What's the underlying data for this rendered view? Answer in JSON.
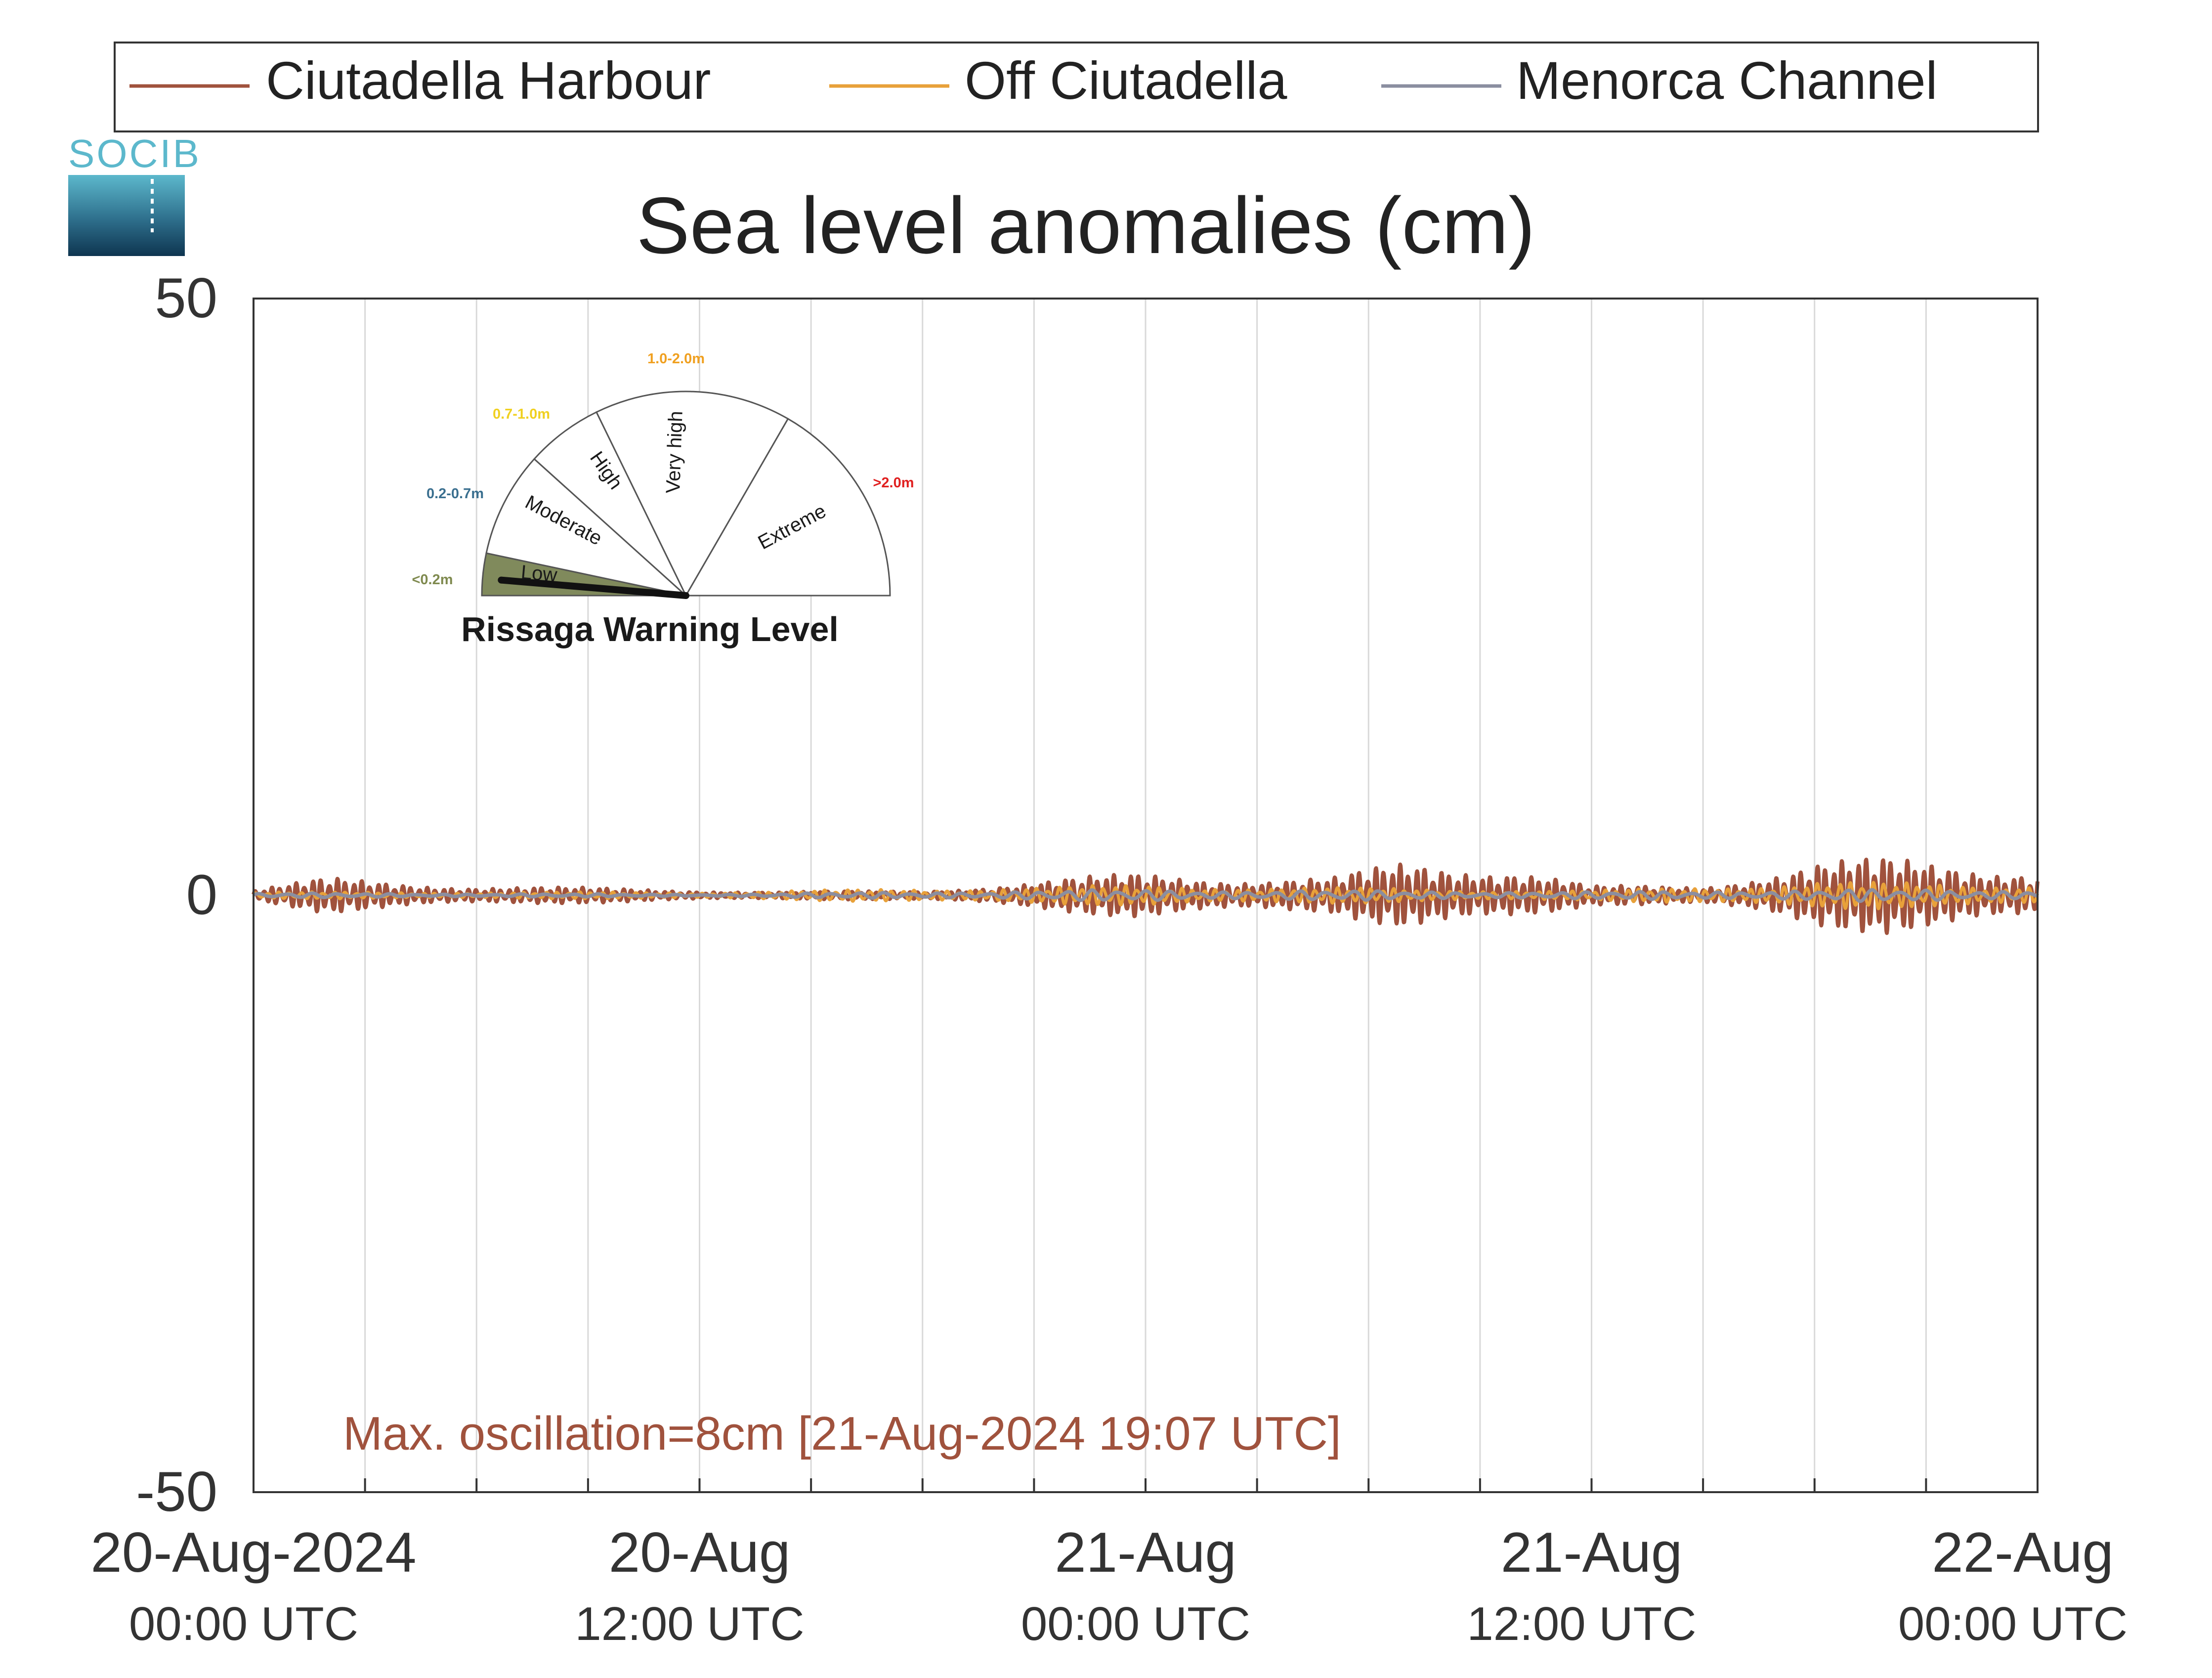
{
  "chart_data": {
    "type": "line",
    "title": "Sea level anomalies (cm)",
    "xlabel": "",
    "ylabel": "",
    "ylim": [
      -50,
      50
    ],
    "yticks": [
      -50,
      0,
      50
    ],
    "xlim": [
      "2024-08-20 00:00",
      "2024-08-22 00:00"
    ],
    "grid": "vertical lines every 3 hours",
    "legend_position": "top",
    "xtick_labels": [
      {
        "date": "20-Aug-2024",
        "time": "00:00 UTC"
      },
      {
        "date": "20-Aug",
        "time": "12:00 UTC"
      },
      {
        "date": "21-Aug",
        "time": "00:00 UTC"
      },
      {
        "date": "21-Aug",
        "time": "12:00 UTC"
      },
      {
        "date": "22-Aug",
        "time": "00:00 UTC"
      }
    ],
    "series": [
      {
        "name": "Ciutadella Harbour",
        "color": "#a0523d",
        "amplitude_profile_cm": [
          [
            "2024-08-20 00:00",
            0.5
          ],
          [
            "2024-08-20 02:00",
            1.5
          ],
          [
            "2024-08-20 06:00",
            0.8
          ],
          [
            "2024-08-20 10:00",
            0.6
          ],
          [
            "2024-08-20 14:00",
            0.3
          ],
          [
            "2024-08-20 18:00",
            0.4
          ],
          [
            "2024-08-21 00:00",
            2.0
          ],
          [
            "2024-08-21 03:00",
            1.5
          ],
          [
            "2024-08-21 05:00",
            1.5
          ],
          [
            "2024-08-21 07:00",
            3.0
          ],
          [
            "2024-08-21 10:00",
            2.5
          ],
          [
            "2024-08-21 12:00",
            0.8
          ],
          [
            "2024-08-21 15:00",
            0.8
          ],
          [
            "2024-08-21 18:00",
            3.0
          ],
          [
            "2024-08-21 20:00",
            3.2
          ],
          [
            "2024-08-22 00:00",
            2.4
          ]
        ]
      },
      {
        "name": "Off Ciutadella",
        "color": "#e8a13a",
        "amplitude_profile_cm": [
          [
            "2024-08-20 00:00",
            0.3
          ],
          [
            "2024-08-20 12:00",
            0.3
          ],
          [
            "2024-08-21 00:00",
            0.9
          ],
          [
            "2024-08-21 12:00",
            0.4
          ],
          [
            "2024-08-21 18:00",
            1.2
          ],
          [
            "2024-08-22 00:00",
            1.0
          ]
        ]
      },
      {
        "name": "Menorca Channel",
        "color": "#8b8ea0",
        "amplitude_profile_cm": [
          [
            "2024-08-20 00:00",
            0.2
          ],
          [
            "2024-08-20 12:00",
            0.1
          ],
          [
            "2024-08-21 00:00",
            0.5
          ],
          [
            "2024-08-21 12:00",
            0.3
          ],
          [
            "2024-08-21 18:00",
            0.5
          ],
          [
            "2024-08-22 00:00",
            0.5
          ]
        ]
      }
    ],
    "annotation": "Max. oscillation=8cm [21-Aug-2024 19:07 UTC]",
    "annotation_color": "#a0523d"
  },
  "logo": {
    "text": "SOCIB"
  },
  "gauge": {
    "title": "Rissaga Warning Level",
    "current_level": "Low",
    "needle_value_m": 0.08,
    "sectors": [
      {
        "label": "Low",
        "range": "<0.2m",
        "range_color": "#7f8a4f",
        "fill": "#808a5c",
        "active": true
      },
      {
        "label": "Moderate",
        "range": "0.2-0.7m",
        "range_color": "#3a6f8f",
        "fill": "#ffffff",
        "active": false
      },
      {
        "label": "High",
        "range": "0.7-1.0m",
        "range_color": "#f0d020",
        "fill": "#ffffff",
        "active": false
      },
      {
        "label": "Very high",
        "range": "1.0-2.0m",
        "range_color": "#f0a020",
        "fill": "#ffffff",
        "active": false
      },
      {
        "label": "Extreme",
        "range": ">2.0m",
        "range_color": "#e02020",
        "fill": "#ffffff",
        "active": false
      }
    ]
  }
}
